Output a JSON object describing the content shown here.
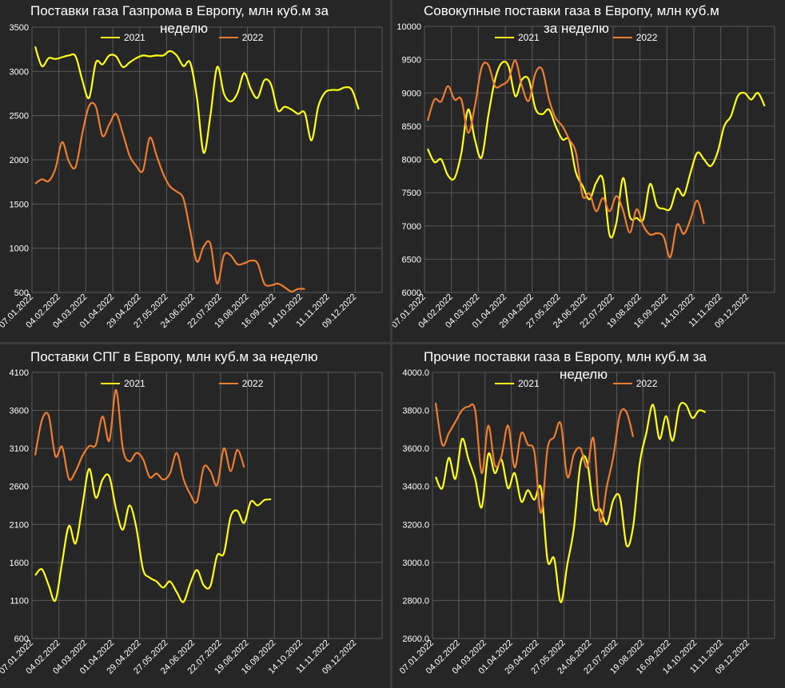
{
  "charts": [
    {
      "id": "gazprom",
      "title_line1": "Поставки газа Газпрома в Европу, млн куб.м за",
      "title_line2": "неделю",
      "legend": [
        "2021",
        "2022"
      ],
      "yticks": [
        "3500",
        "3000",
        "2500",
        "2000",
        "1500",
        "1000",
        "500"
      ],
      "xticks": [
        "07.01.2022",
        "04.02.2022",
        "04.03.2022",
        "01.04.2022",
        "29.04.2022",
        "27.05.2022",
        "24.06.2022",
        "22.07.2022",
        "19.08.2022",
        "16.09.2022",
        "14.10.2022",
        "11.11.2022",
        "09.12.2022"
      ]
    },
    {
      "id": "total",
      "title_line1": "Совокупные поставки газа в Европу, млн куб.м",
      "title_line2": "за неделю",
      "legend": [
        "2021",
        "2022"
      ],
      "yticks": [
        "10000",
        "9500",
        "9000",
        "8500",
        "8000",
        "7500",
        "7000",
        "6500",
        "6000"
      ],
      "xticks": [
        "07.01.2022",
        "04.02.2022",
        "04.03.2022",
        "01.04.2022",
        "29.04.2022",
        "27.05.2022",
        "24.06.2022",
        "22.07.2022",
        "19.08.2022",
        "16.09.2022",
        "14.10.2022",
        "11.11.2022",
        "09.12.2022"
      ]
    },
    {
      "id": "lng",
      "title_line1": "Поставки СПГ в Европу, млн куб.м за неделю",
      "title_line2": "",
      "legend": [
        "2021",
        "2022"
      ],
      "yticks": [
        "4100",
        "3600",
        "3100",
        "2600",
        "2100",
        "1600",
        "1100",
        "600"
      ],
      "xticks": [
        "07.01.2022",
        "04.02.2022",
        "04.03.2022",
        "01.04.2022",
        "29.04.2022",
        "27.05.2022",
        "24.06.2022",
        "22.07.2022",
        "19.08.2022",
        "16.09.2022",
        "14.10.2022",
        "11.11.2022",
        "09.12.2022"
      ]
    },
    {
      "id": "other",
      "title_line1": "Прочие поставки газа в Европу, млн куб.м за",
      "title_line2": "неделю",
      "legend": [
        "2021",
        "2022"
      ],
      "yticks": [
        "4000.0",
        "3800.0",
        "3600.0",
        "3400.0",
        "3200.0",
        "3000.0",
        "2800.0",
        "2600.0"
      ],
      "xticks": [
        "07.01.2022",
        "04.02.2022",
        "04.03.2022",
        "01.04.2022",
        "29.04.2022",
        "27.05.2022",
        "24.06.2022",
        "22.07.2022",
        "19.08.2022",
        "16.09.2022",
        "14.10.2022",
        "11.11.2022",
        "09.12.2022"
      ]
    }
  ],
  "colors": {
    "y2021": "#ffff1a",
    "y2022": "#ed7d31",
    "grid": "#595959",
    "bg": "#262626",
    "text": "#ffffff"
  },
  "chart_data": [
    {
      "type": "line",
      "title": "Поставки газа Газпрома в Европу, млн куб.м за неделю",
      "ylim": [
        500,
        3500
      ],
      "x_labels": [
        "07.01.2022",
        "04.02.2022",
        "04.03.2022",
        "01.04.2022",
        "29.04.2022",
        "27.05.2022",
        "24.06.2022",
        "22.07.2022",
        "19.08.2022",
        "16.09.2022",
        "14.10.2022",
        "11.11.2022",
        "09.12.2022"
      ],
      "series": [
        {
          "name": "2021",
          "values": [
            3280,
            3060,
            3150,
            3140,
            3160,
            3180,
            3170,
            2900,
            2700,
            3100,
            3080,
            3180,
            3170,
            3050,
            3100,
            3150,
            3180,
            3170,
            3180,
            3180,
            3230,
            3180,
            3060,
            3100,
            2700,
            2080,
            2500,
            3050,
            2750,
            2660,
            2750,
            2980,
            2800,
            2700,
            2900,
            2850,
            2560,
            2600,
            2570,
            2520,
            2530,
            2220,
            2600,
            2760,
            2790,
            2790,
            2820,
            2790,
            2570
          ]
        },
        {
          "name": "2022",
          "values": [
            1730,
            1780,
            1760,
            1900,
            2200,
            1980,
            1920,
            2300,
            2610,
            2600,
            2270,
            2400,
            2520,
            2300,
            2050,
            1930,
            1880,
            2250,
            2050,
            1840,
            1700,
            1640,
            1560,
            1200,
            850,
            1020,
            1050,
            600,
            920,
            920,
            820,
            830,
            860,
            830,
            600,
            580,
            600,
            560,
            510,
            540,
            540
          ]
        }
      ],
      "grid": true,
      "legend_position": "top-center"
    },
    {
      "type": "line",
      "title": "Совокупные поставки газа в Европу, млн куб.м за неделю",
      "ylim": [
        6000,
        10000
      ],
      "x_labels": [
        "07.01.2022",
        "04.02.2022",
        "04.03.2022",
        "01.04.2022",
        "29.04.2022",
        "27.05.2022",
        "24.06.2022",
        "22.07.2022",
        "19.08.2022",
        "16.09.2022",
        "14.10.2022",
        "11.11.2022",
        "09.12.2022"
      ],
      "series": [
        {
          "name": "2021",
          "values": [
            8160,
            7960,
            8000,
            7760,
            7720,
            8100,
            8750,
            8300,
            8030,
            8660,
            9200,
            9450,
            9400,
            8950,
            9200,
            9200,
            8760,
            8680,
            8750,
            8500,
            8300,
            8290,
            7800,
            7600,
            7400,
            7650,
            7700,
            6860,
            7050,
            7720,
            7140,
            7120,
            7100,
            7630,
            7310,
            7260,
            7260,
            7560,
            7460,
            7800,
            8100,
            8000,
            7900,
            8100,
            8500,
            8650,
            8950,
            9000,
            8900,
            9000,
            8800
          ]
        },
        {
          "name": "2022",
          "values": [
            8580,
            8900,
            8870,
            9100,
            8900,
            8900,
            8400,
            8800,
            9380,
            9420,
            9100,
            9120,
            9200,
            9490,
            9100,
            8880,
            9300,
            9350,
            8900,
            8620,
            8500,
            8300,
            8100,
            7450,
            7490,
            7220,
            7420,
            7220,
            7450,
            7230,
            6900,
            7250,
            7000,
            6870,
            6890,
            6840,
            6530,
            7020,
            6880,
            7100,
            7380,
            7030
          ]
        }
      ],
      "grid": true,
      "legend_position": "top-center"
    },
    {
      "type": "line",
      "title": "Поставки СПГ в Европу, млн куб.м за неделю",
      "ylim": [
        600,
        4100
      ],
      "x_labels": [
        "07.01.2022",
        "04.02.2022",
        "04.03.2022",
        "01.04.2022",
        "29.04.2022",
        "27.05.2022",
        "24.06.2022",
        "22.07.2022",
        "19.08.2022",
        "16.09.2022",
        "14.10.2022",
        "11.11.2022",
        "09.12.2022"
      ],
      "series": [
        {
          "name": "2021",
          "values": [
            1430,
            1510,
            1300,
            1100,
            1600,
            2080,
            1850,
            2340,
            2830,
            2450,
            2690,
            2730,
            2300,
            2030,
            2350,
            2060,
            1510,
            1400,
            1350,
            1270,
            1350,
            1210,
            1080,
            1320,
            1500,
            1300,
            1290,
            1690,
            1720,
            2200,
            2280,
            2120,
            2400,
            2350,
            2420,
            2430
          ]
        },
        {
          "name": "2022",
          "values": [
            3010,
            3470,
            3530,
            3000,
            3120,
            2700,
            2800,
            3000,
            3130,
            3150,
            3520,
            3200,
            3870,
            3100,
            2930,
            3040,
            2960,
            2720,
            2770,
            2690,
            2770,
            3040,
            2700,
            2500,
            2400,
            2850,
            2800,
            2620,
            3100,
            2800,
            3080,
            2850
          ]
        }
      ],
      "grid": true,
      "legend_position": "top-center"
    },
    {
      "type": "line",
      "title": "Прочие поставки газа в Европу, млн куб.м за неделю",
      "ylim": [
        2600,
        4000
      ],
      "x_labels": [
        "07.01.2022",
        "04.02.2022",
        "04.03.2022",
        "01.04.2022",
        "29.04.2022",
        "27.05.2022",
        "24.06.2022",
        "22.07.2022",
        "19.08.2022",
        "16.09.2022",
        "14.10.2022",
        "11.11.2022",
        "09.12.2022"
      ],
      "series": [
        {
          "name": "2021",
          "values": [
            3450,
            3390,
            3550,
            3440,
            3650,
            3540,
            3440,
            3290,
            3570,
            3470,
            3540,
            3390,
            3470,
            3320,
            3380,
            3330,
            3390,
            3010,
            3020,
            2790,
            2990,
            3180,
            3520,
            3530,
            3290,
            3280,
            3200,
            3330,
            3340,
            3090,
            3190,
            3520,
            3680,
            3830,
            3650,
            3770,
            3640,
            3820,
            3830,
            3760,
            3800,
            3790
          ]
        },
        {
          "name": "2022",
          "values": [
            3840,
            3620,
            3680,
            3740,
            3800,
            3820,
            3800,
            3470,
            3720,
            3510,
            3560,
            3720,
            3500,
            3680,
            3620,
            3580,
            3260,
            3600,
            3660,
            3730,
            3450,
            3570,
            3600,
            3500,
            3650,
            3220,
            3400,
            3560,
            3780,
            3790,
            3660
          ]
        }
      ],
      "grid": true,
      "legend_position": "top-center"
    }
  ]
}
